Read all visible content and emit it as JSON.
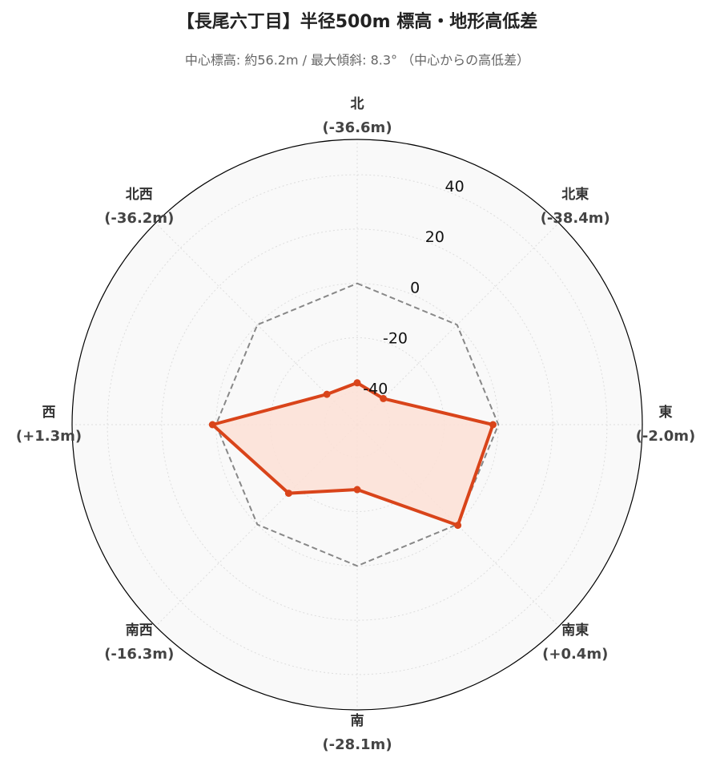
{
  "chart_data": {
    "type": "radar",
    "title": "【長尾六丁目】半径500m 標高・地形高低差",
    "subtitle": "中心標高: 約56.2m / 最大傾斜: 8.3° （中心からの高低差）",
    "categories": [
      "北",
      "北東",
      "東",
      "南東",
      "南",
      "南西",
      "西",
      "北西"
    ],
    "values": [
      -36.6,
      -38.4,
      -2.0,
      0.4,
      -28.1,
      -16.3,
      1.3,
      -36.2
    ],
    "value_labels": [
      "(-36.6m)",
      "(-38.4m)",
      "(-2.0m)",
      "(+0.4m)",
      "(-28.1m)",
      "(-16.3m)",
      "(+1.3m)",
      "(-36.2m)"
    ],
    "color": "#d9441a",
    "fill_color": "#fde0d6",
    "reference_line": 0,
    "reference_color": "#888888",
    "ylim": [
      -52,
      53
    ],
    "yticks": [
      -40,
      -20,
      0,
      20,
      40
    ],
    "grid": true
  }
}
